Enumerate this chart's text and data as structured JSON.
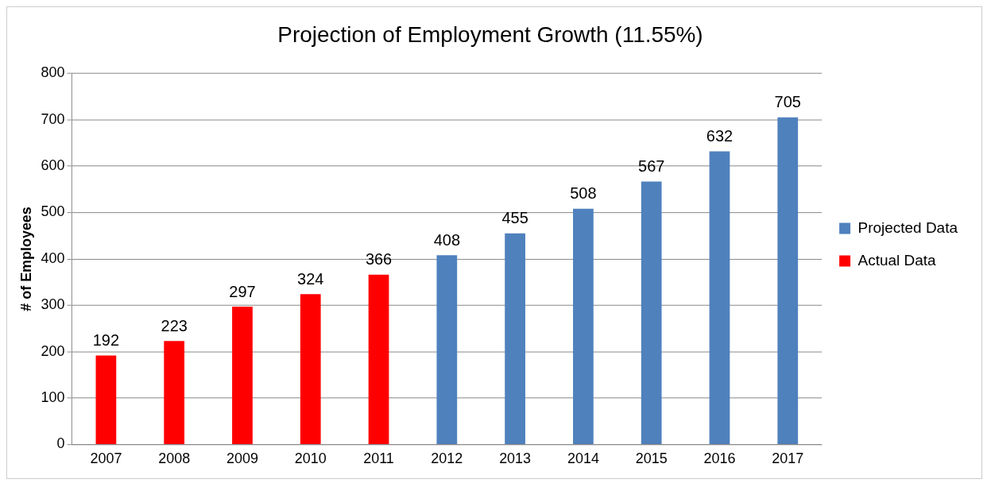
{
  "chart_data": {
    "type": "bar",
    "title": "Projection of Employment Growth (11.55%)",
    "ylabel": "# of Employees",
    "categories": [
      "2007",
      "2008",
      "2009",
      "2010",
      "2011",
      "2012",
      "2013",
      "2014",
      "2015",
      "2016",
      "2017"
    ],
    "series": [
      {
        "name": "Projected Data",
        "color": "#4f81bd",
        "values": [
          null,
          null,
          null,
          null,
          null,
          408,
          455,
          508,
          567,
          632,
          705
        ]
      },
      {
        "name": "Actual Data",
        "color": "#ff0000",
        "values": [
          192,
          223,
          297,
          324,
          366,
          null,
          null,
          null,
          null,
          null,
          null
        ]
      }
    ],
    "ylim": [
      0,
      800
    ],
    "yticks": [
      0,
      100,
      200,
      300,
      400,
      500,
      600,
      700,
      800
    ],
    "grid": "y",
    "legend": "right",
    "data_labels": true
  }
}
